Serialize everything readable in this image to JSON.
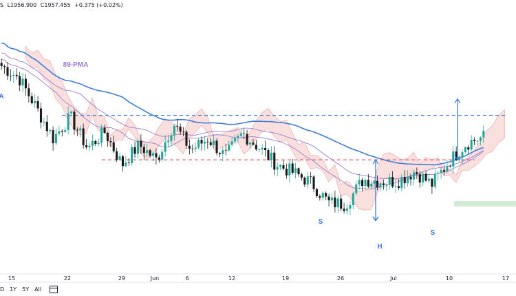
{
  "ohlc": {
    "symbol_tail": "S",
    "low": "L1956.900",
    "close": "C1957.455",
    "change": "+0.375 (+0.02%)"
  },
  "colors": {
    "up": "#26a69a",
    "down": "#1a1a1a",
    "pma89": "#9c7cd0",
    "ma_blue": "#3d7bd9",
    "cloud": "#f7c9c9",
    "cloud_green": "#c8e6c9",
    "support": "#e84a5f",
    "resistance": "#3d7bd9",
    "annotation": "#3d7bd9"
  },
  "chart_data": {
    "type": "candlestick",
    "title": "",
    "x_tick_labels": [
      "15",
      "22",
      "29",
      "Jun",
      "6",
      "12",
      "19",
      "26",
      "Jul",
      "10",
      "17"
    ],
    "lines": {
      "resistance_level": 1990,
      "support_level": 1963,
      "style": "dashed"
    },
    "indicators": [
      "89-PMA",
      "Moving average (blue)",
      "Moving average (purple)",
      "Ichimoku cloud"
    ],
    "annotations": [
      {
        "text": "89-PMA",
        "color": "#9c7cd0"
      },
      {
        "text": "S",
        "color": "#3d7bd9"
      },
      {
        "text": "H",
        "color": "#3d7bd9"
      },
      {
        "text": "S",
        "color": "#3d7bd9"
      },
      {
        "text": "A",
        "color": "#3d7bd9"
      }
    ],
    "approx_price_path": [
      2020,
      2013,
      1995,
      1976,
      1989,
      1970,
      1980,
      1960,
      1972,
      1963,
      1985,
      1969,
      1976,
      1965,
      1979,
      1970,
      1960,
      1955,
      1949,
      1937,
      1936,
      1951,
      1950,
      1950,
      1956,
      1948,
      1962,
      1973,
      1977
    ]
  },
  "range_bar": {
    "items": [
      "D",
      "1Y",
      "5Y",
      "All"
    ]
  }
}
